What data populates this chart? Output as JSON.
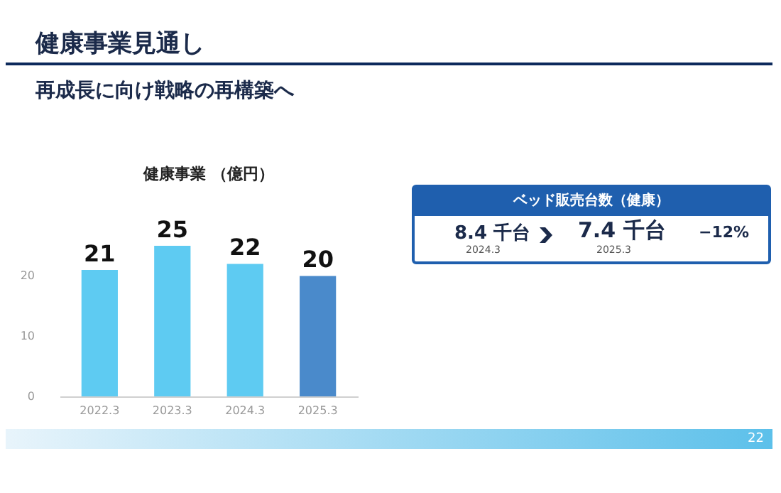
{
  "chart_data": [
    {
      "type": "other",
      "title": "健康事業見通し",
      "subtitle": "再成長に向け戦略の再構築へ",
      "annotations": [
        "22"
      ]
    },
    {
      "type": "bar",
      "title": "健康事業 （億円）",
      "categories": [
        "2022.3",
        "2023.3",
        "2024.3",
        "2025.3"
      ],
      "values": [
        21,
        25,
        22,
        20
      ],
      "colors": [
        "#5ecbf2",
        "#5ecbf2",
        "#5ecbf2",
        "#4a8acb"
      ],
      "ylim": [
        0,
        25
      ],
      "yticks": [
        0,
        10,
        20
      ],
      "grid": false,
      "data_labels": true
    },
    {
      "type": "other",
      "title": "ベッド販売台数（健康）",
      "annotations": [
        "8.4 千台",
        "2024.3",
        "7.4 千台",
        "2025.3",
        "−12%"
      ]
    }
  ]
}
